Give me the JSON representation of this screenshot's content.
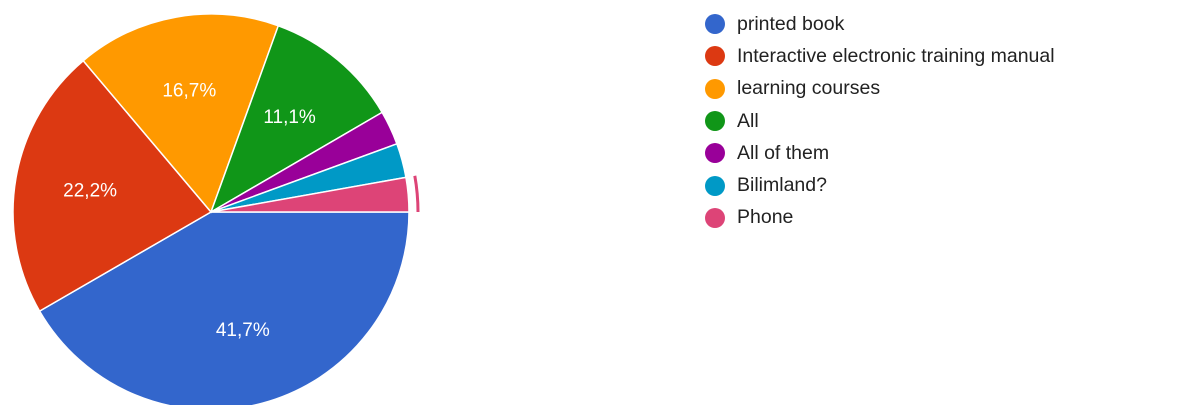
{
  "chart_data": {
    "type": "pie",
    "start_angle_deg": 0,
    "direction": "clockwise",
    "legend_position": "right",
    "slices": [
      {
        "label": "printed book",
        "value": 41.7,
        "display": "41,7%",
        "color": "#3366CC"
      },
      {
        "label": "Interactive electronic training manual",
        "value": 22.2,
        "display": "22,2%",
        "color": "#DC3912"
      },
      {
        "label": "learning courses",
        "value": 16.7,
        "display": "16,7%",
        "color": "#FF9900"
      },
      {
        "label": "All",
        "value": 11.1,
        "display": "11,1%",
        "color": "#109618"
      },
      {
        "label": "All of them",
        "value": 2.8,
        "display": "",
        "color": "#990099"
      },
      {
        "label": "Bilimland?",
        "value": 2.8,
        "display": "",
        "color": "#0099C6"
      },
      {
        "label": "Phone",
        "value": 2.8,
        "display": "",
        "color": "#DD4477"
      }
    ]
  }
}
